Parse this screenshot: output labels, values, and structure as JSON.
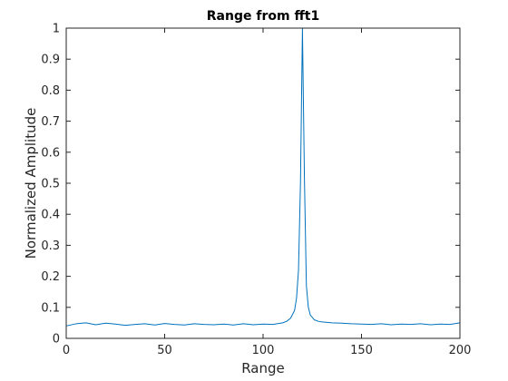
{
  "chart_data": {
    "type": "line",
    "title": "Range from fft1",
    "xlabel": "Range",
    "ylabel": "Normalized Amplitude",
    "xlim": [
      0,
      200
    ],
    "ylim": [
      0,
      1
    ],
    "xticks": [
      0,
      50,
      100,
      150,
      200
    ],
    "xtick_labels": [
      "0",
      "50",
      "100",
      "150",
      "200"
    ],
    "yticks": [
      0,
      0.1,
      0.2,
      0.3,
      0.4,
      0.5,
      0.6,
      0.7,
      0.8,
      0.9,
      1
    ],
    "ytick_labels": [
      "0",
      "0.1",
      "0.2",
      "0.3",
      "0.4",
      "0.5",
      "0.6",
      "0.7",
      "0.8",
      "0.9",
      "1"
    ],
    "grid": false,
    "line_color": "#0072BD",
    "series": [
      {
        "x": [
          0,
          5,
          10,
          15,
          20,
          25,
          30,
          35,
          40,
          45,
          50,
          55,
          60,
          65,
          70,
          75,
          80,
          85,
          90,
          95,
          100,
          105,
          110,
          112,
          114,
          116,
          117,
          118,
          119,
          120,
          121,
          122,
          123,
          124,
          126,
          128,
          130,
          135,
          140,
          145,
          150,
          155,
          160,
          165,
          170,
          175,
          180,
          185,
          190,
          195,
          200
        ],
        "y": [
          0.04,
          0.047,
          0.05,
          0.044,
          0.049,
          0.046,
          0.042,
          0.045,
          0.047,
          0.043,
          0.048,
          0.045,
          0.043,
          0.047,
          0.045,
          0.044,
          0.046,
          0.043,
          0.047,
          0.044,
          0.046,
          0.045,
          0.05,
          0.055,
          0.065,
          0.09,
          0.13,
          0.22,
          0.5,
          1.0,
          0.52,
          0.17,
          0.1,
          0.075,
          0.06,
          0.055,
          0.053,
          0.05,
          0.049,
          0.047,
          0.046,
          0.045,
          0.047,
          0.044,
          0.046,
          0.045,
          0.047,
          0.044,
          0.046,
          0.045,
          0.05
        ]
      }
    ]
  }
}
